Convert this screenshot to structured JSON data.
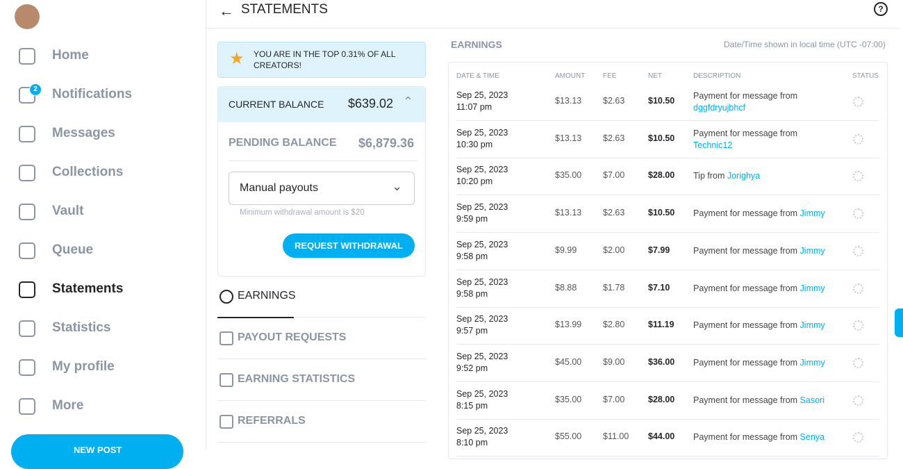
{
  "sidebar": {
    "nav": [
      {
        "label": "Home"
      },
      {
        "label": "Notifications",
        "badge": "2"
      },
      {
        "label": "Messages"
      },
      {
        "label": "Collections"
      },
      {
        "label": "Vault"
      },
      {
        "label": "Queue"
      },
      {
        "label": "Statements"
      },
      {
        "label": "Statistics"
      },
      {
        "label": "My profile"
      },
      {
        "label": "More"
      }
    ],
    "new_post": "NEW POST"
  },
  "header": {
    "title": "STATEMENTS"
  },
  "banner": "YOU ARE IN THE TOP 0.31% OF ALL CREATORS!",
  "balance": {
    "current_label": "CURRENT BALANCE",
    "current_value": "$639.02",
    "pending_label": "PENDING BALANCE",
    "pending_value": "$6,879.36",
    "payout_mode": "Manual payouts",
    "hint": "Minimum withdrawal amount is $20",
    "button": "REQUEST WITHDRAWAL"
  },
  "tabs": [
    "EARNINGS",
    "PAYOUT REQUESTS",
    "EARNING STATISTICS",
    "REFERRALS"
  ],
  "earnings": {
    "title": "EARNINGS",
    "timezone_note": "Date/Time shown in local time (UTC -07:00)",
    "columns": [
      "DATE & TIME",
      "AMOUNT",
      "FEE",
      "NET",
      "DESCRIPTION",
      "STATUS"
    ],
    "rows": [
      [
        "Sep 25, 2023",
        "11:07 pm",
        "$13.13",
        "$2.63",
        "$10.50",
        "Payment for message from",
        "dggfdryujbhcf"
      ],
      [
        "Sep 25, 2023",
        "10:30 pm",
        "$13.13",
        "$2.63",
        "$10.50",
        "Payment for message from",
        "Technic12"
      ],
      [
        "Sep 25, 2023",
        "10:20 pm",
        "$35.00",
        "$7.00",
        "$28.00",
        "Tip from",
        "Jorighya"
      ],
      [
        "Sep 25, 2023",
        "9:59 pm",
        "$13.13",
        "$2.63",
        "$10.50",
        "Payment for message from",
        "Jimmy"
      ],
      [
        "Sep 25, 2023",
        "9:58 pm",
        "$9.99",
        "$2.00",
        "$7.99",
        "Payment for message from",
        "Jimmy"
      ],
      [
        "Sep 25, 2023",
        "9:58 pm",
        "$8.88",
        "$1.78",
        "$7.10",
        "Payment for message from",
        "Jimmy"
      ],
      [
        "Sep 25, 2023",
        "9:57 pm",
        "$13.99",
        "$2.80",
        "$11.19",
        "Payment for message from",
        "Jimmy"
      ],
      [
        "Sep 25, 2023",
        "9:52 pm",
        "$45.00",
        "$9.00",
        "$36.00",
        "Payment for message from",
        "Jimmy"
      ],
      [
        "Sep 25, 2023",
        "8:15 pm",
        "$35.00",
        "$7.00",
        "$28.00",
        "Payment for message from",
        "Sasori"
      ],
      [
        "Sep 25, 2023",
        "8:10 pm",
        "$55.00",
        "$11.00",
        "$44.00",
        "Payment for message from",
        "Senya"
      ]
    ]
  }
}
